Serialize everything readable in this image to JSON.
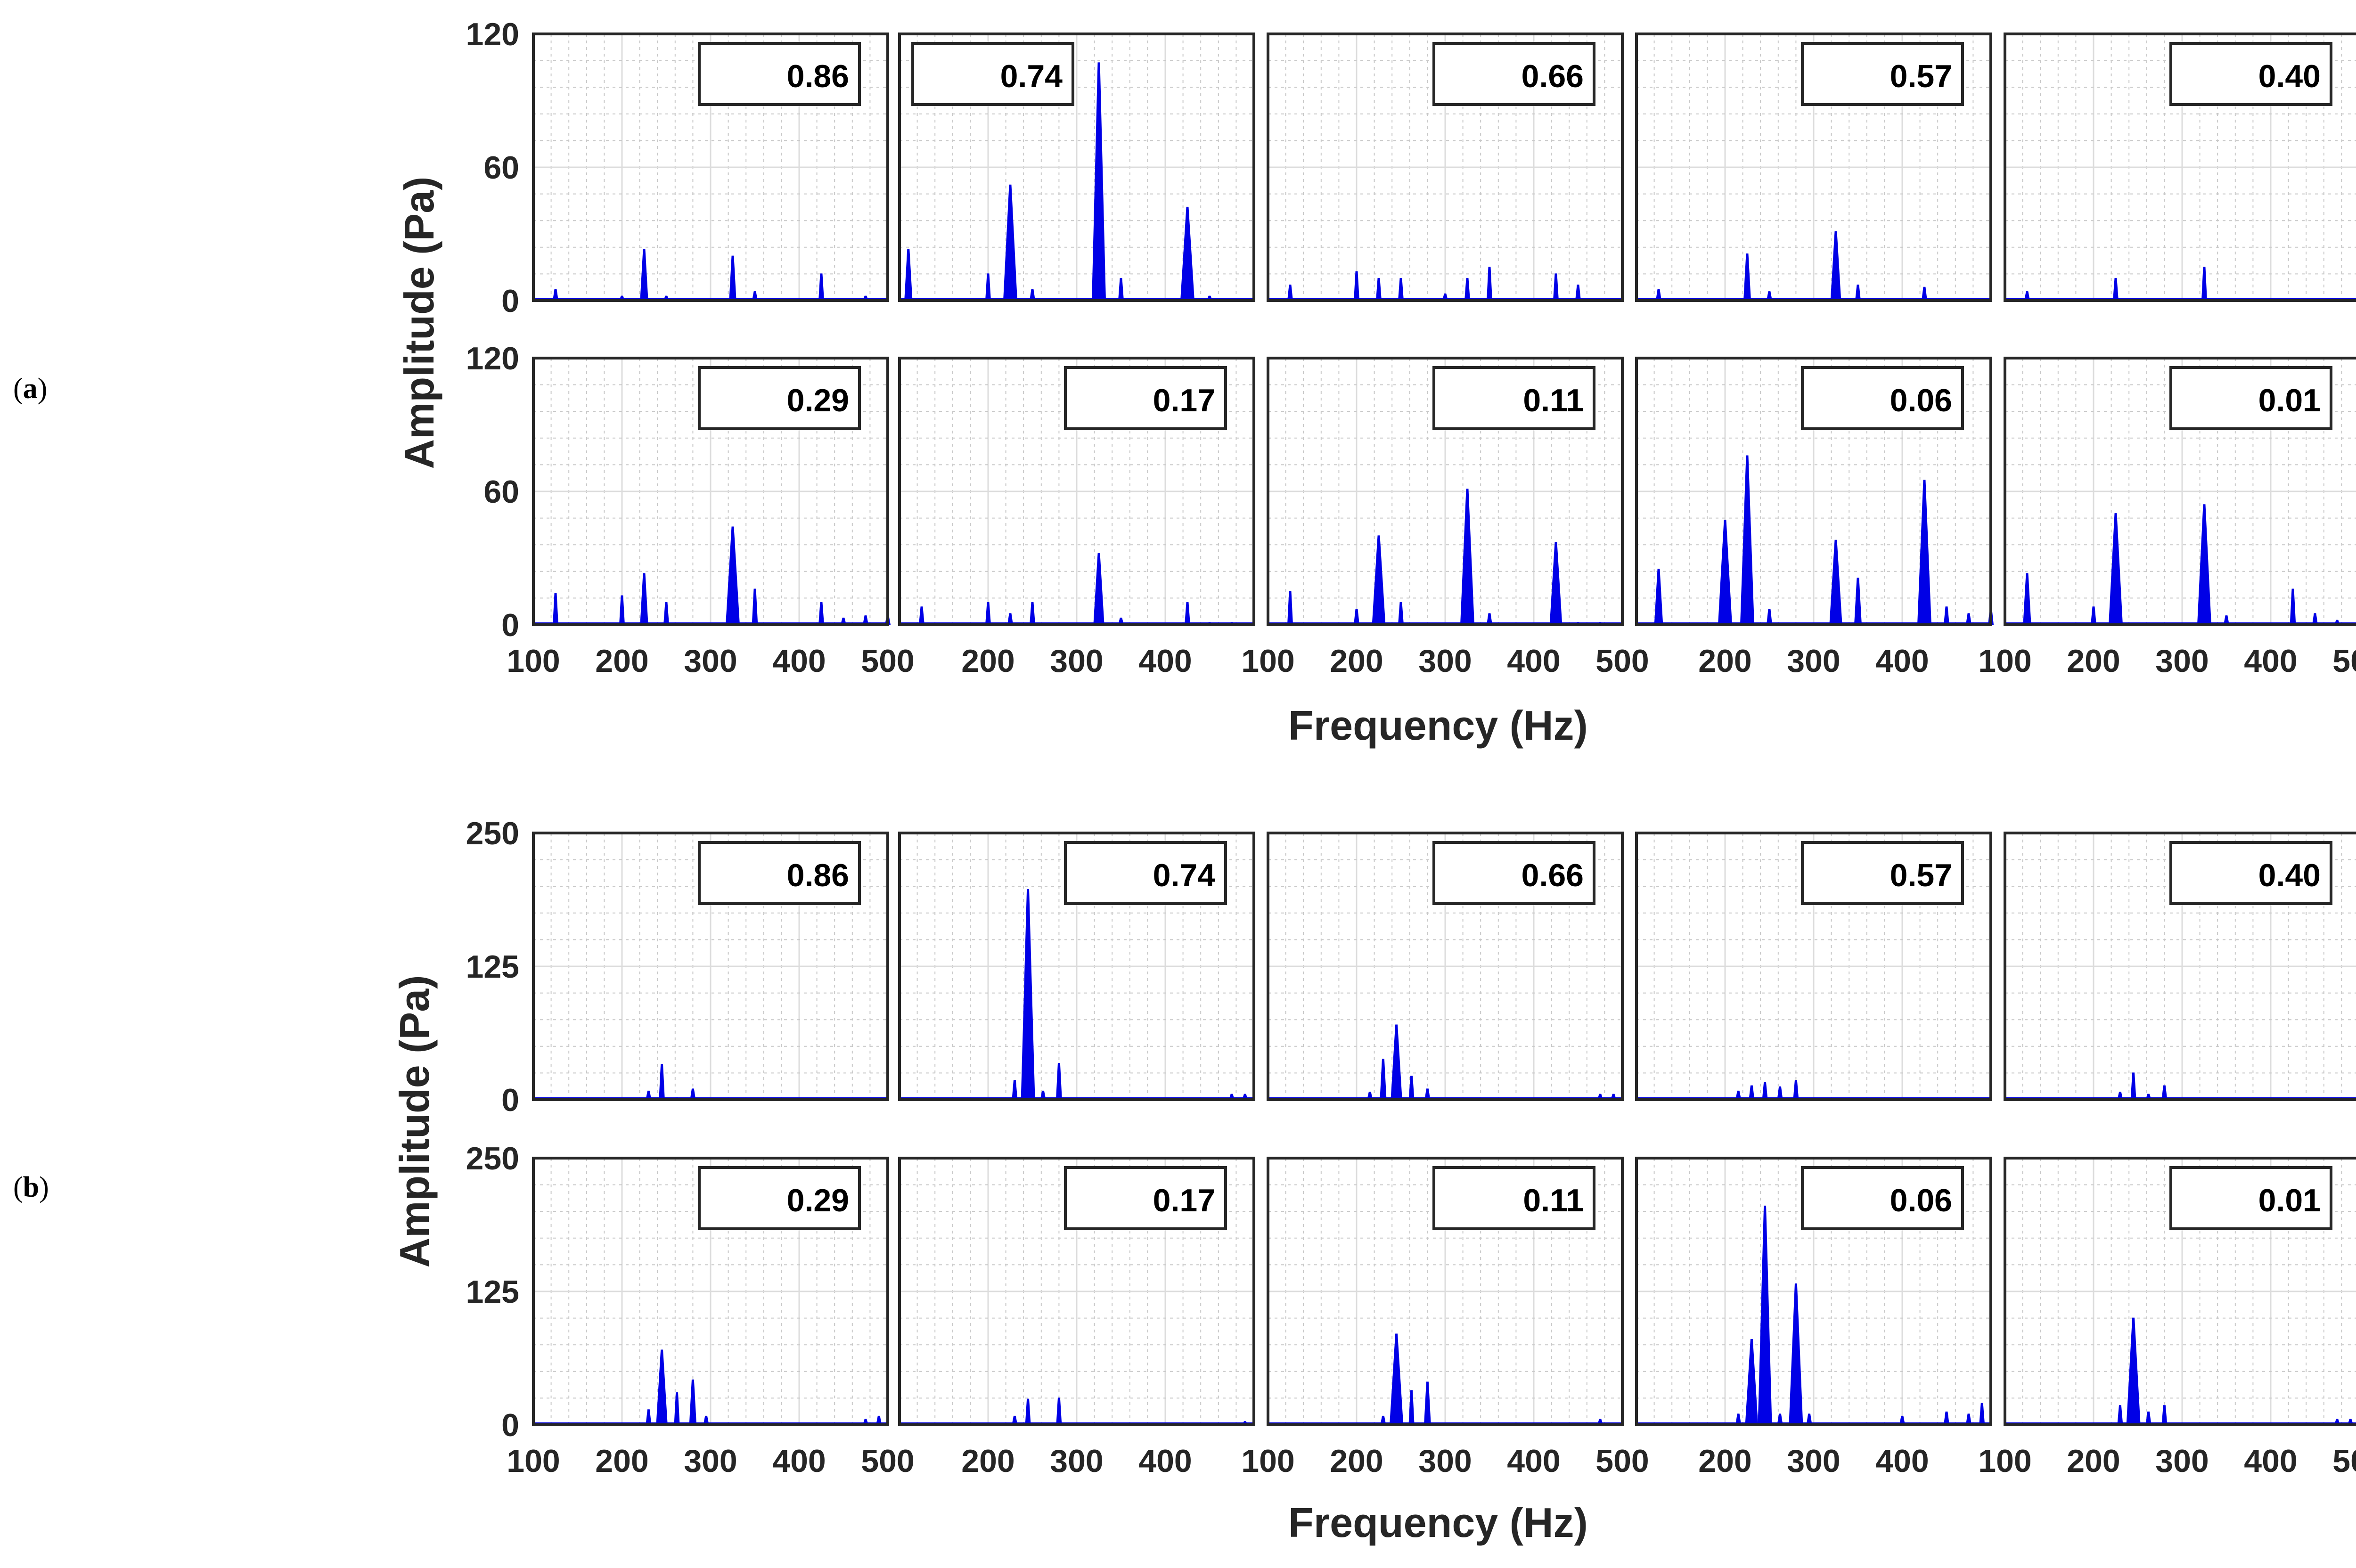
{
  "labels": {
    "part_a": "a",
    "part_b": "b",
    "ylabel": "Amplitude (Pa)",
    "xlabel": "Frequency (Hz)"
  },
  "colors": {
    "spectrum": "#0000e6",
    "axes": "#262626"
  },
  "chart_data": [
    {
      "group": "a",
      "type": "line",
      "xlabel": "Frequency (Hz)",
      "ylabel": "Amplitude (Pa)",
      "xlim": [
        100,
        500
      ],
      "ylim": [
        0,
        120
      ],
      "yticks": [
        0,
        60,
        120
      ],
      "grid": true,
      "panels": [
        {
          "label": "0.86",
          "peaks": [
            [
              125,
              5
            ],
            [
              200,
              2
            ],
            [
              225,
              23
            ],
            [
              250,
              2
            ],
            [
              325,
              20
            ],
            [
              350,
              4
            ],
            [
              425,
              12
            ],
            [
              450,
              1
            ],
            [
              475,
              2
            ]
          ]
        },
        {
          "label": "0.74",
          "peaks": [
            [
              110,
              23
            ],
            [
              200,
              12
            ],
            [
              225,
              52
            ],
            [
              250,
              5
            ],
            [
              325,
              107
            ],
            [
              350,
              10
            ],
            [
              425,
              42
            ],
            [
              450,
              2
            ],
            [
              475,
              1
            ]
          ]
        },
        {
          "label": "0.66",
          "peaks": [
            [
              125,
              7
            ],
            [
              200,
              13
            ],
            [
              225,
              10
            ],
            [
              250,
              10
            ],
            [
              300,
              3
            ],
            [
              325,
              10
            ],
            [
              350,
              15
            ],
            [
              425,
              12
            ],
            [
              450,
              7
            ],
            [
              475,
              1
            ]
          ]
        },
        {
          "label": "0.57",
          "peaks": [
            [
              125,
              5
            ],
            [
              225,
              21
            ],
            [
              250,
              4
            ],
            [
              325,
              31
            ],
            [
              350,
              7
            ],
            [
              425,
              6
            ],
            [
              450,
              1
            ],
            [
              475,
              1
            ]
          ]
        },
        {
          "label": "0.40",
          "peaks": [
            [
              125,
              4
            ],
            [
              225,
              10
            ],
            [
              325,
              15
            ],
            [
              450,
              1
            ],
            [
              475,
              1
            ]
          ]
        }
      ]
    },
    {
      "group": "a",
      "type": "line",
      "xlabel": "Frequency (Hz)",
      "ylabel": "Amplitude (Pa)",
      "xlim": [
        100,
        500
      ],
      "ylim": [
        0,
        120
      ],
      "yticks": [
        0,
        60,
        120
      ],
      "xticks": [
        100,
        200,
        300,
        400,
        500
      ],
      "grid": true,
      "panels": [
        {
          "label": "0.29",
          "peaks": [
            [
              125,
              14
            ],
            [
              200,
              13
            ],
            [
              225,
              23
            ],
            [
              250,
              10
            ],
            [
              325,
              44
            ],
            [
              350,
              16
            ],
            [
              425,
              10
            ],
            [
              450,
              3
            ],
            [
              475,
              4
            ],
            [
              500,
              4
            ]
          ]
        },
        {
          "label": "0.17",
          "peaks": [
            [
              125,
              8
            ],
            [
              200,
              10
            ],
            [
              225,
              5
            ],
            [
              250,
              10
            ],
            [
              325,
              32
            ],
            [
              350,
              3
            ],
            [
              425,
              10
            ],
            [
              450,
              1
            ],
            [
              475,
              1
            ]
          ]
        },
        {
          "label": "0.11",
          "peaks": [
            [
              125,
              15
            ],
            [
              200,
              7
            ],
            [
              225,
              40
            ],
            [
              250,
              10
            ],
            [
              325,
              61
            ],
            [
              350,
              5
            ],
            [
              425,
              37
            ],
            [
              450,
              1
            ],
            [
              475,
              1
            ]
          ]
        },
        {
          "label": "0.06",
          "peaks": [
            [
              125,
              25
            ],
            [
              200,
              47
            ],
            [
              225,
              76
            ],
            [
              250,
              7
            ],
            [
              325,
              38
            ],
            [
              350,
              21
            ],
            [
              425,
              65
            ],
            [
              450,
              8
            ],
            [
              475,
              5
            ],
            [
              500,
              7
            ]
          ]
        },
        {
          "label": "0.01",
          "peaks": [
            [
              125,
              23
            ],
            [
              200,
              8
            ],
            [
              225,
              50
            ],
            [
              325,
              54
            ],
            [
              350,
              4
            ],
            [
              425,
              16
            ],
            [
              450,
              5
            ],
            [
              475,
              2
            ]
          ]
        }
      ]
    },
    {
      "group": "b",
      "type": "line",
      "xlabel": "Frequency (Hz)",
      "ylabel": "Amplitude (Pa)",
      "xlim": [
        100,
        500
      ],
      "ylim": [
        0,
        250
      ],
      "yticks": [
        0,
        125,
        250
      ],
      "grid": true,
      "panels": [
        {
          "label": "0.86",
          "peaks": [
            [
              230,
              8
            ],
            [
              245,
              33
            ],
            [
              262,
              2
            ],
            [
              280,
              10
            ]
          ]
        },
        {
          "label": "0.74",
          "peaks": [
            [
              230,
              18
            ],
            [
              245,
              197
            ],
            [
              262,
              8
            ],
            [
              280,
              34
            ],
            [
              475,
              5
            ],
            [
              490,
              5
            ]
          ]
        },
        {
          "label": "0.66",
          "peaks": [
            [
              215,
              7
            ],
            [
              230,
              38
            ],
            [
              245,
              70
            ],
            [
              262,
              22
            ],
            [
              280,
              10
            ],
            [
              475,
              5
            ],
            [
              490,
              5
            ]
          ]
        },
        {
          "label": "0.57",
          "peaks": [
            [
              215,
              8
            ],
            [
              230,
              13
            ],
            [
              245,
              16
            ],
            [
              262,
              12
            ],
            [
              280,
              18
            ]
          ]
        },
        {
          "label": "0.40",
          "peaks": [
            [
              230,
              7
            ],
            [
              245,
              25
            ],
            [
              262,
              5
            ],
            [
              280,
              13
            ]
          ]
        }
      ]
    },
    {
      "group": "b",
      "type": "line",
      "xlabel": "Frequency (Hz)",
      "ylabel": "Amplitude (Pa)",
      "xlim": [
        100,
        500
      ],
      "ylim": [
        0,
        250
      ],
      "yticks": [
        0,
        125,
        250
      ],
      "xticks": [
        100,
        200,
        300,
        400,
        500
      ],
      "grid": true,
      "panels": [
        {
          "label": "0.29",
          "peaks": [
            [
              230,
              14
            ],
            [
              245,
              70
            ],
            [
              262,
              30
            ],
            [
              280,
              42
            ],
            [
              295,
              8
            ],
            [
              475,
              5
            ],
            [
              490,
              8
            ]
          ]
        },
        {
          "label": "0.17",
          "peaks": [
            [
              230,
              8
            ],
            [
              245,
              24
            ],
            [
              280,
              25
            ],
            [
              490,
              3
            ]
          ]
        },
        {
          "label": "0.11",
          "peaks": [
            [
              230,
              8
            ],
            [
              245,
              85
            ],
            [
              262,
              32
            ],
            [
              280,
              40
            ],
            [
              475,
              5
            ]
          ]
        },
        {
          "label": "0.06",
          "peaks": [
            [
              215,
              10
            ],
            [
              230,
              80
            ],
            [
              245,
              205
            ],
            [
              262,
              10
            ],
            [
              280,
              132
            ],
            [
              295,
              10
            ],
            [
              400,
              8
            ],
            [
              450,
              12
            ],
            [
              475,
              10
            ],
            [
              490,
              20
            ]
          ]
        },
        {
          "label": "0.01",
          "peaks": [
            [
              230,
              18
            ],
            [
              245,
              100
            ],
            [
              262,
              12
            ],
            [
              280,
              18
            ],
            [
              475,
              5
            ],
            [
              490,
              5
            ]
          ]
        }
      ]
    }
  ]
}
